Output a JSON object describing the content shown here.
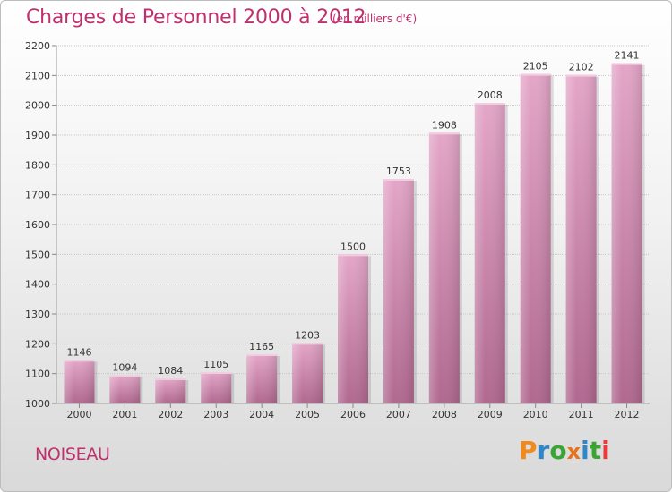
{
  "header": {
    "title": "Charges de Personnel 2000 à 2012",
    "subtitle": "(en milliers d'€)"
  },
  "footer": {
    "city": "NOISEAU",
    "logo": {
      "letters": [
        "P",
        "r",
        "o",
        "x",
        "i",
        "t",
        "i"
      ],
      "colors": [
        "#f08a1c",
        "#2f86c8",
        "#3aa535",
        "#e8731a",
        "#2f86c8",
        "#3aa535",
        "#e83c3c"
      ]
    }
  },
  "chart_data": {
    "type": "bar",
    "title": "Charges de Personnel 2000 à 2012",
    "subtitle": "(en milliers d'€)",
    "categories": [
      "2000",
      "2001",
      "2002",
      "2003",
      "2004",
      "2005",
      "2006",
      "2007",
      "2008",
      "2009",
      "2010",
      "2011",
      "2012"
    ],
    "values": [
      1146,
      1094,
      1084,
      1105,
      1165,
      1203,
      1500,
      1753,
      1908,
      2008,
      2105,
      2102,
      2141
    ],
    "data_labels": [
      "1146",
      "1094",
      "1084",
      "1105",
      "1165",
      "1203",
      "1500",
      "1753",
      "1908",
      "2008",
      "2105",
      "2102",
      "2141"
    ],
    "ylim": [
      1000,
      2200
    ],
    "yticks": [
      1000,
      1100,
      1200,
      1300,
      1400,
      1500,
      1600,
      1700,
      1800,
      1900,
      2000,
      2100,
      2200
    ],
    "ytick_labels": [
      "1000",
      "1100",
      "1200",
      "1300",
      "1400",
      "1500",
      "1600",
      "1700",
      "1800",
      "1900",
      "2000",
      "2100",
      "2200"
    ],
    "grid": true,
    "bar_color": "#c9799f",
    "xlabel": "",
    "ylabel": ""
  }
}
